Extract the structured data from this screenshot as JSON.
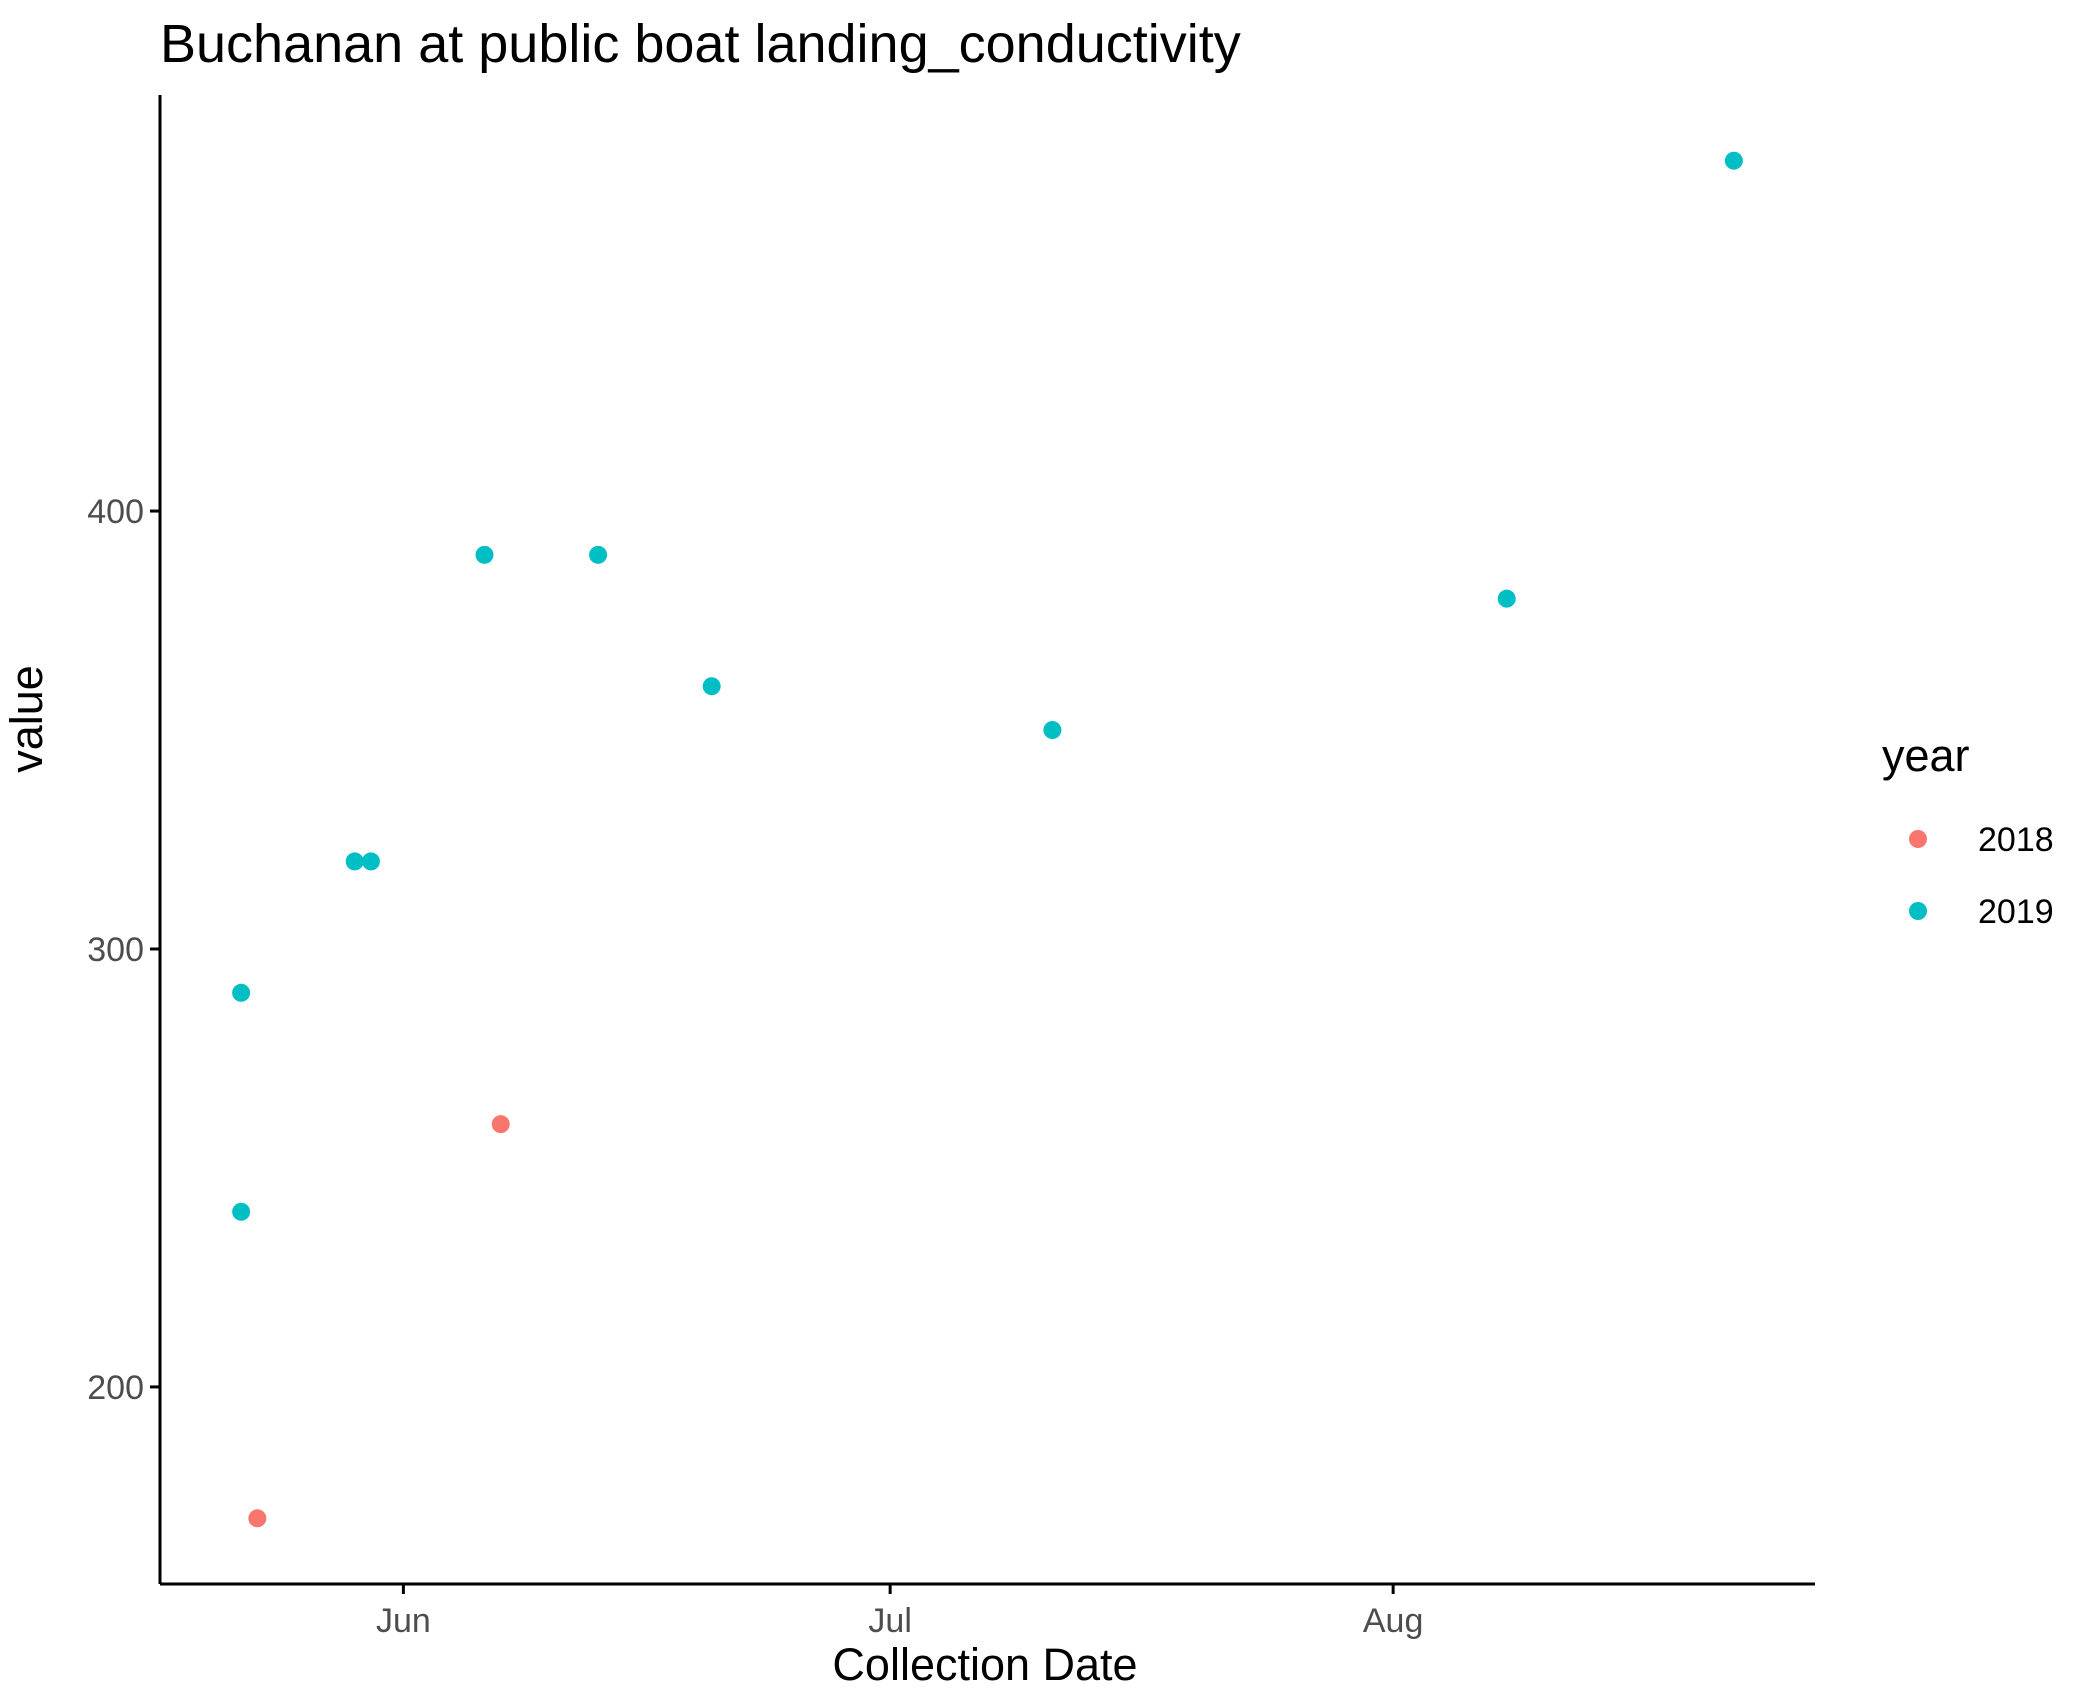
{
  "chart_data": {
    "type": "scatter",
    "title": "Buchanan at public boat landing_conductivity",
    "xlabel": "Collection Date",
    "ylabel": "value",
    "x_axis": "date",
    "xlim": [
      "2018-05-17",
      "2018-08-27"
    ],
    "ylim": [
      155,
      495
    ],
    "x_ticks": [
      {
        "date": "2018-06-01",
        "label": "Jun"
      },
      {
        "date": "2018-07-01",
        "label": "Jul"
      },
      {
        "date": "2018-08-01",
        "label": "Aug"
      }
    ],
    "y_ticks": [
      200,
      300,
      400
    ],
    "grid": false,
    "legend": {
      "title": "year",
      "position": "right"
    },
    "series": [
      {
        "name": "2018",
        "color": "#F8766D",
        "points": [
          {
            "x": "2018-05-23",
            "y": 170
          },
          {
            "x": "2018-06-07",
            "y": 260
          }
        ]
      },
      {
        "name": "2019",
        "color": "#00BFC4",
        "points": [
          {
            "x": "2018-05-22",
            "y": 240
          },
          {
            "x": "2018-05-22",
            "y": 290
          },
          {
            "x": "2018-05-29",
            "y": 320
          },
          {
            "x": "2018-05-30",
            "y": 320
          },
          {
            "x": "2018-06-06",
            "y": 390
          },
          {
            "x": "2018-06-13",
            "y": 390
          },
          {
            "x": "2018-06-20",
            "y": 360
          },
          {
            "x": "2018-07-11",
            "y": 350
          },
          {
            "x": "2018-08-08",
            "y": 380
          },
          {
            "x": "2018-08-22",
            "y": 480
          }
        ]
      }
    ]
  }
}
